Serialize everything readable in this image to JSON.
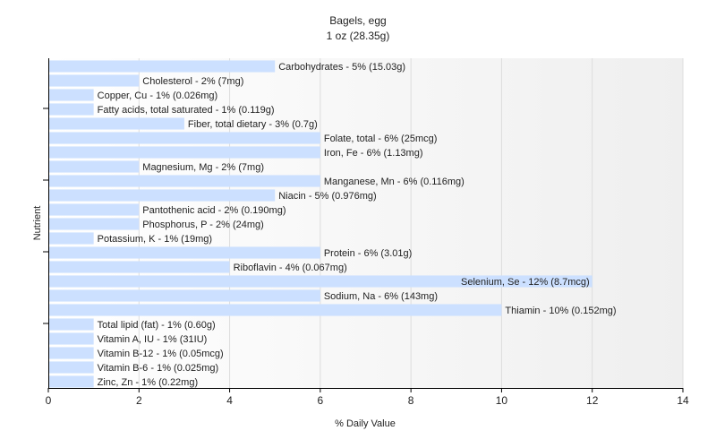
{
  "chart_data": {
    "type": "bar",
    "orientation": "horizontal",
    "title": "Bagels, egg",
    "subtitle": "1 oz (28.35g)",
    "xlabel": "% Daily Value",
    "ylabel": "Nutrient",
    "xlim": [
      0,
      14
    ],
    "xticks": [
      "0",
      "2",
      "4",
      "6",
      "8",
      "10",
      "12",
      "14"
    ],
    "grid": true,
    "colors": {
      "bar": "#cce0ff",
      "axis": "#000000",
      "grid": "#dddddd"
    },
    "categories": [
      "Carbohydrates",
      "Cholesterol",
      "Copper, Cu",
      "Fatty acids, total saturated",
      "Fiber, total dietary",
      "Folate, total",
      "Iron, Fe",
      "Magnesium, Mg",
      "Manganese, Mn",
      "Niacin",
      "Pantothenic acid",
      "Phosphorus, P",
      "Potassium, K",
      "Protein",
      "Riboflavin",
      "Selenium, Se",
      "Sodium, Na",
      "Thiamin",
      "Total lipid (fat)",
      "Vitamin A, IU",
      "Vitamin B-12",
      "Vitamin B-6",
      "Zinc, Zn"
    ],
    "values": [
      5,
      2,
      1,
      1,
      3,
      6,
      6,
      2,
      6,
      5,
      2,
      2,
      1,
      6,
      4,
      12,
      6,
      10,
      1,
      1,
      1,
      1,
      1
    ],
    "labels": [
      "Carbohydrates - 5% (15.03g)",
      "Cholesterol - 2% (7mg)",
      "Copper, Cu - 1% (0.026mg)",
      "Fatty acids, total saturated - 1% (0.119g)",
      "Fiber, total dietary - 3% (0.7g)",
      "Folate, total - 6% (25mcg)",
      "Iron, Fe - 6% (1.13mg)",
      "Magnesium, Mg - 2% (7mg)",
      "Manganese, Mn - 6% (0.116mg)",
      "Niacin - 5% (0.976mg)",
      "Pantothenic acid - 2% (0.190mg)",
      "Phosphorus, P - 2% (24mg)",
      "Potassium, K - 1% (19mg)",
      "Protein - 6% (3.01g)",
      "Riboflavin - 4% (0.067mg)",
      "Selenium, Se - 12% (8.7mcg)",
      "Sodium, Na - 6% (143mg)",
      "Thiamin - 10% (0.152mg)",
      "Total lipid (fat) - 1% (0.60g)",
      "Vitamin A, IU - 1% (31IU)",
      "Vitamin B-12 - 1% (0.05mcg)",
      "Vitamin B-6 - 1% (0.025mg)",
      "Zinc, Zn - 1% (0.22mg)"
    ]
  }
}
